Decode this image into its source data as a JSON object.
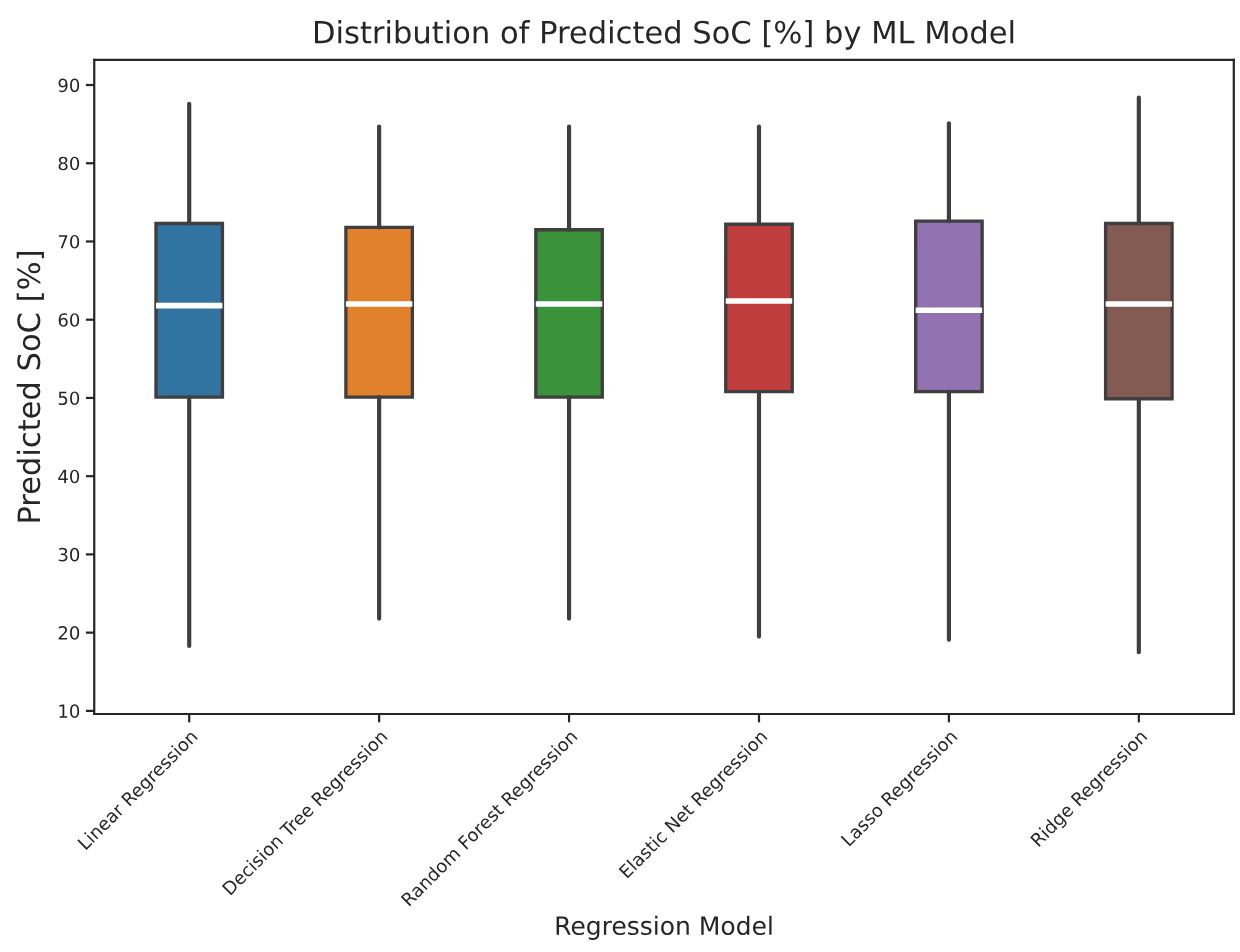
{
  "chart_data": {
    "type": "box",
    "title": "Distribution of Predicted SoC [%] by ML Model",
    "xlabel": "Regression Model",
    "ylabel": "Predicted SoC [%]",
    "categories": [
      "Linear Regression",
      "Decision Tree Regression",
      "Random Forest Regression",
      "Elastic Net Regression",
      "Lasso Regression",
      "Ridge Regression"
    ],
    "colors": [
      "#3274a1",
      "#e1812c",
      "#3a923a",
      "#c03d3e",
      "#9372b2",
      "#845b53"
    ],
    "boxes": [
      {
        "low": 18.3,
        "q1": 50.1,
        "median": 61.8,
        "q3": 72.3,
        "high": 87.6
      },
      {
        "low": 21.8,
        "q1": 50.1,
        "median": 62.0,
        "q3": 71.8,
        "high": 84.7
      },
      {
        "low": 21.8,
        "q1": 50.1,
        "median": 62.0,
        "q3": 71.5,
        "high": 84.7
      },
      {
        "low": 19.5,
        "q1": 50.8,
        "median": 62.4,
        "q3": 72.2,
        "high": 84.7
      },
      {
        "low": 19.1,
        "q1": 50.8,
        "median": 61.2,
        "q3": 72.6,
        "high": 85.1
      },
      {
        "low": 17.5,
        "q1": 49.9,
        "median": 62.0,
        "q3": 72.3,
        "high": 88.4
      }
    ],
    "ylim": [
      9.6,
      93.2
    ],
    "yticks": [
      10,
      20,
      30,
      40,
      50,
      60,
      70,
      80,
      90
    ],
    "grid": false,
    "legend": false
  }
}
